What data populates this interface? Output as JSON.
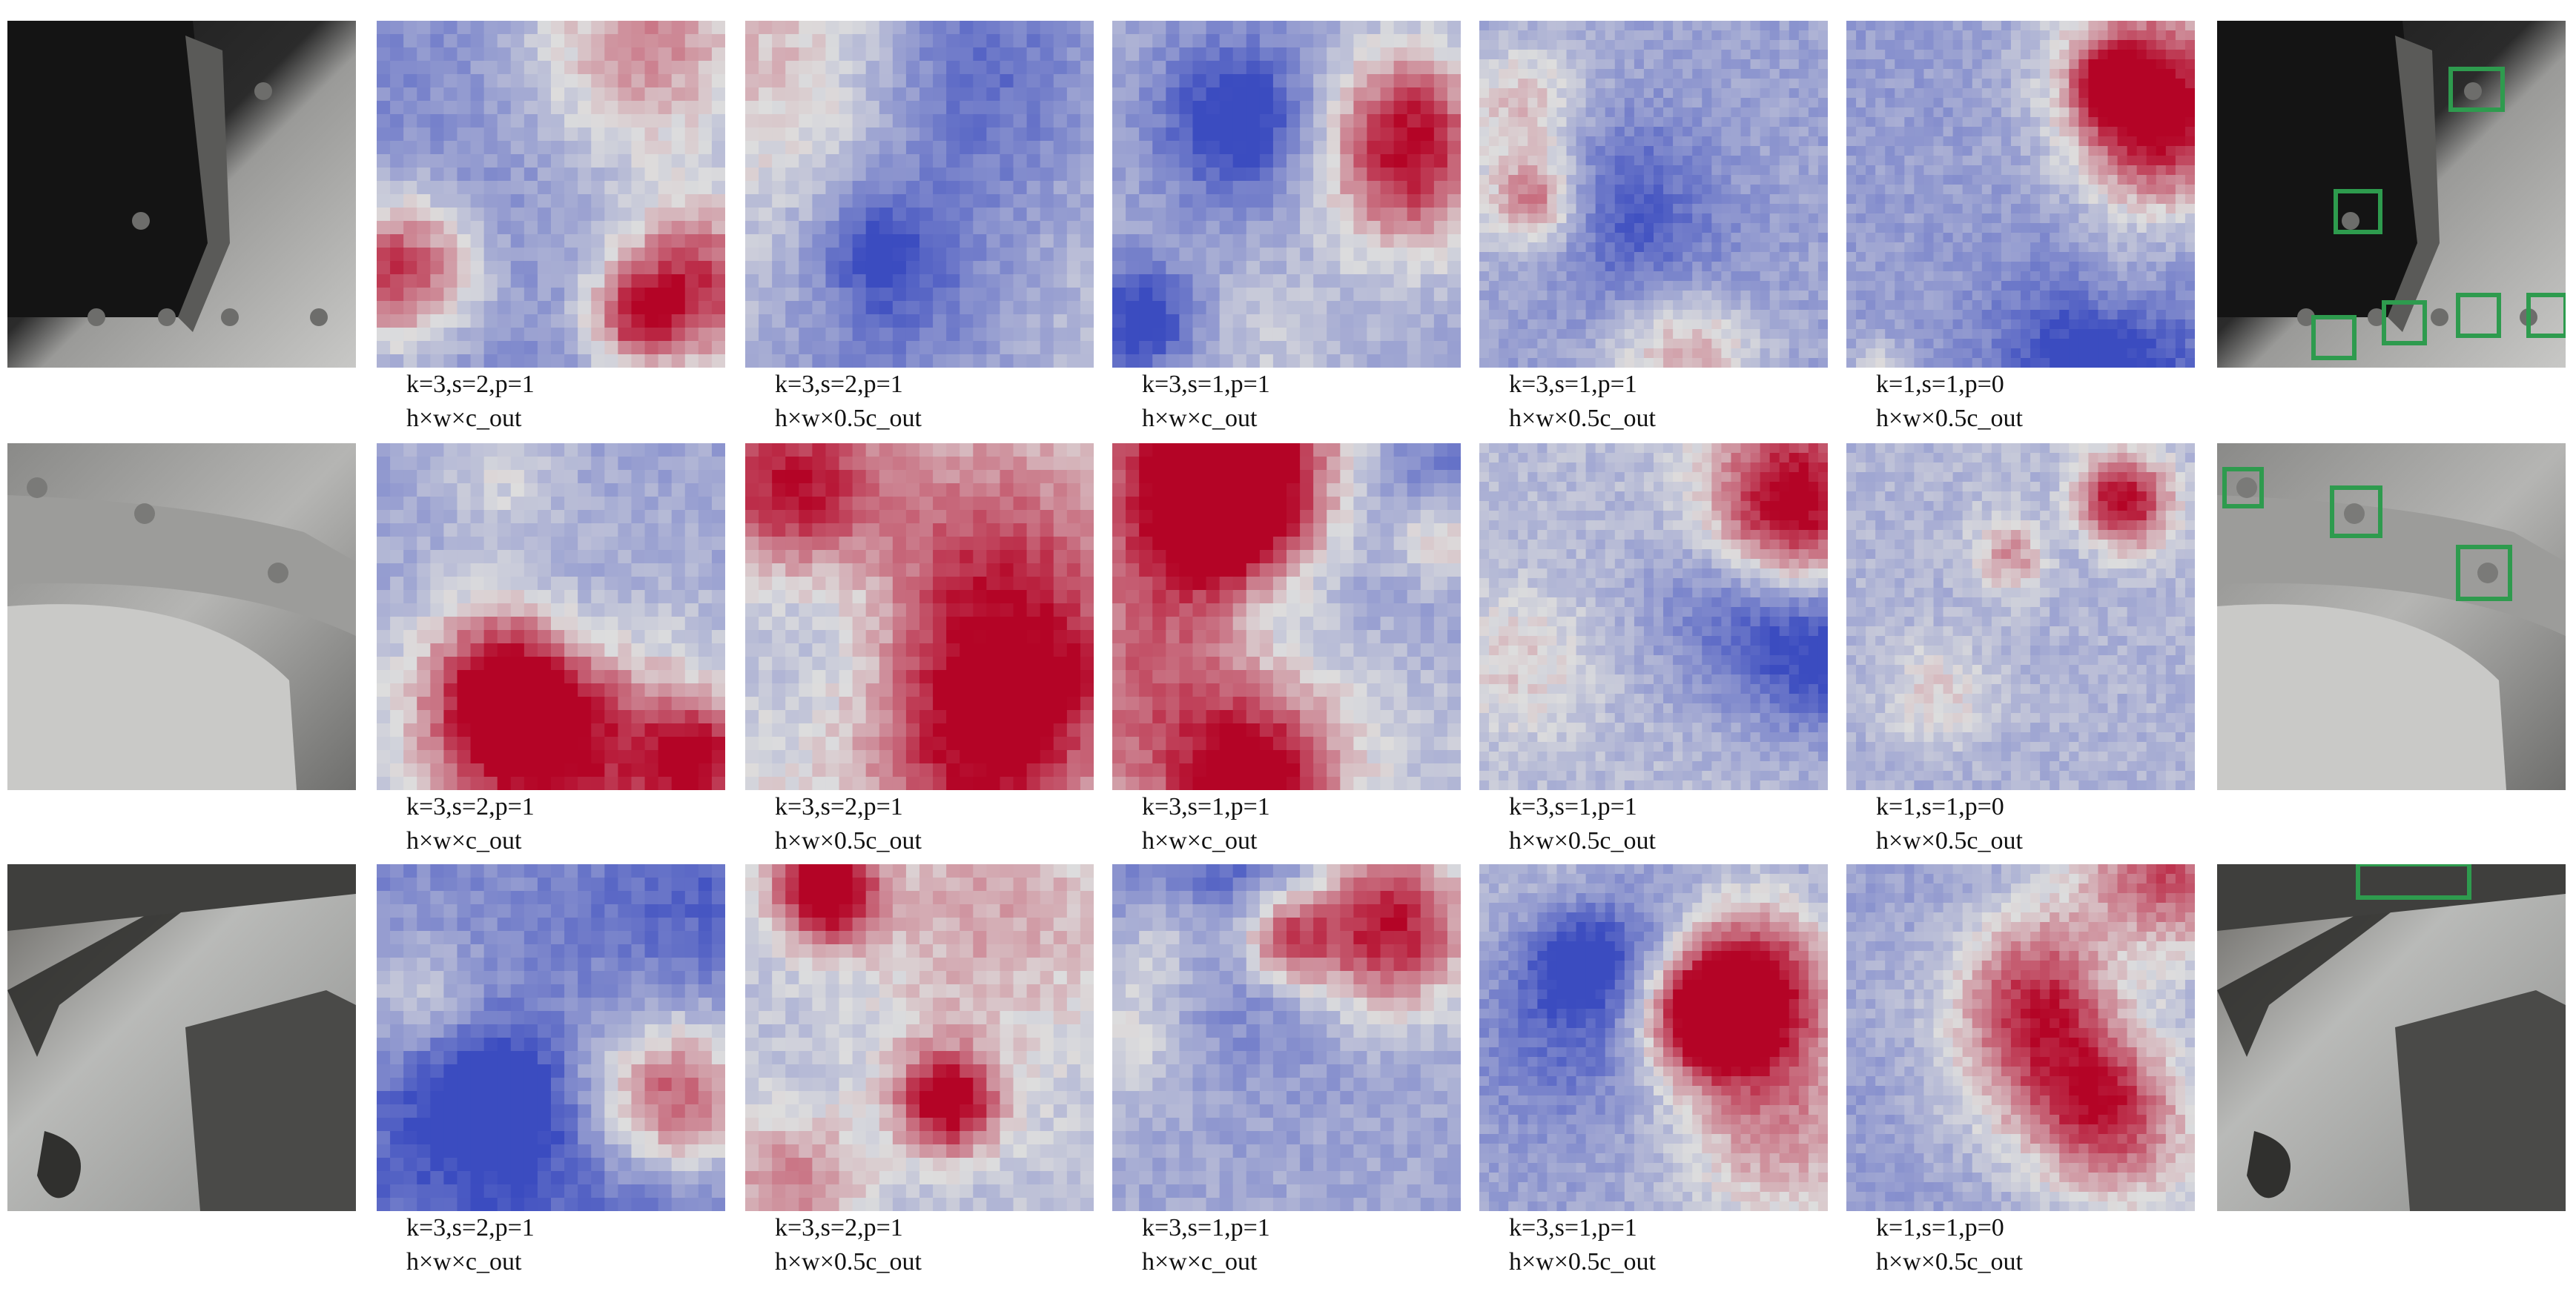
{
  "figure": {
    "rows": [
      {
        "id": "row-1",
        "captions": [
          {
            "line1": "k=3,s=2,p=1",
            "line2": "h×w×c_out"
          },
          {
            "line1": "k=3,s=2,p=1",
            "line2": "h×w×0.5c_out"
          },
          {
            "line1": "k=3,s=1,p=1",
            "line2": "h×w×c_out"
          },
          {
            "line1": "k=3,s=1,p=1",
            "line2": "h×w×0.5c_out"
          },
          {
            "line1": "k=1,s=1,p=0",
            "line2": "h×w×0.5c_out"
          }
        ],
        "detections": 6
      },
      {
        "id": "row-2",
        "captions": [
          {
            "line1": "k=3,s=2,p=1",
            "line2": "h×w×c_out"
          },
          {
            "line1": "k=3,s=2,p=1",
            "line2": "h×w×0.5c_out"
          },
          {
            "line1": "k=3,s=1,p=1",
            "line2": "h×w×c_out"
          },
          {
            "line1": "k=3,s=1,p=1",
            "line2": "h×w×0.5c_out"
          },
          {
            "line1": "k=1,s=1,p=0",
            "line2": "h×w×0.5c_out"
          }
        ],
        "detections": 3
      },
      {
        "id": "row-3",
        "captions": [
          {
            "line1": "k=3,s=2,p=1",
            "line2": "h×w×c_out"
          },
          {
            "line1": "k=3,s=2,p=1",
            "line2": "h×w×0.5c_out"
          },
          {
            "line1": "k=3,s=1,p=1",
            "line2": "h×w×c_out"
          },
          {
            "line1": "k=3,s=1,p=1",
            "line2": "h×w×0.5c_out"
          },
          {
            "line1": "k=1,s=1,p=0",
            "line2": "h×w×0.5c_out"
          }
        ],
        "detections": 1
      }
    ],
    "colors": {
      "heat_high": "#b40426",
      "heat_mid": "#dddddd",
      "heat_low": "#3b4cc0",
      "box": "#2e9b4e"
    }
  }
}
